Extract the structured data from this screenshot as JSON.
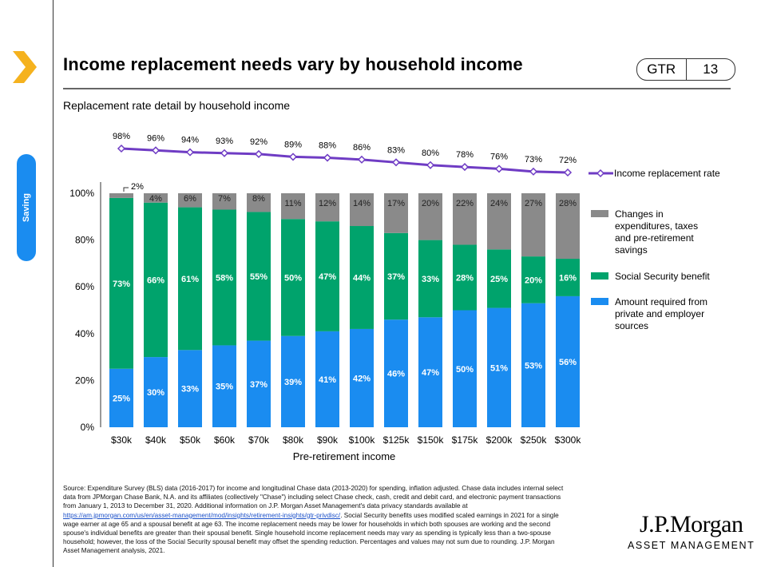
{
  "header": {
    "title": "Income replacement needs vary by household income",
    "badge_left": "GTR",
    "badge_right": "13",
    "side_tab": "Saving"
  },
  "colors": {
    "accent": "#f5b21e",
    "tab": "#1a8cf0",
    "blue": "#1a8cf0",
    "green": "#00a36c",
    "gray": "#8a8a8a",
    "purple": "#6f3cc4"
  },
  "chart_data": {
    "type": "bar",
    "title": "Replacement rate detail by household income",
    "xlabel": "Pre-retirement income",
    "ylabel": "",
    "ylim": [
      0,
      100
    ],
    "yticks": [
      "0%",
      "20%",
      "40%",
      "60%",
      "80%",
      "100%"
    ],
    "categories": [
      "$30k",
      "$40k",
      "$50k",
      "$60k",
      "$70k",
      "$80k",
      "$90k",
      "$100k",
      "$125k",
      "$150k",
      "$175k",
      "$200k",
      "$250k",
      "$300k"
    ],
    "series": [
      {
        "name": "Amount required from private and employer sources",
        "values": [
          25,
          30,
          33,
          35,
          37,
          39,
          41,
          42,
          46,
          47,
          50,
          51,
          53,
          56
        ]
      },
      {
        "name": "Social Security benefit",
        "values": [
          73,
          66,
          61,
          58,
          55,
          50,
          47,
          44,
          37,
          33,
          28,
          25,
          20,
          16
        ]
      },
      {
        "name": "Changes in expenditures, taxes and pre-retirement savings",
        "values": [
          2,
          4,
          6,
          7,
          8,
          11,
          12,
          14,
          17,
          20,
          22,
          24,
          27,
          28
        ]
      }
    ],
    "line": {
      "name": "Income replacement rate",
      "values": [
        98,
        96,
        94,
        93,
        92,
        89,
        88,
        86,
        83,
        80,
        78,
        76,
        73,
        72
      ]
    },
    "legend_position": "right"
  },
  "footnote": {
    "pre": "Source: Expenditure Survey (BLS) data (2016-2017) for income and longitudinal Chase data (2013-2020) for spending, inflation adjusted. Chase data includes internal select data from JPMorgan Chase Bank, N.A. and its affiliates (collectively \"Chase\") including select Chase check, cash, credit and debit card, and electronic payment transactions from January 1, 2013 to December 31, 2020. Additional information on J.P. Morgan Asset Management's data privacy standards available at ",
    "link": "https://am.jpmorgan.com/us/en/asset-management/mod/insights/retirement-insights/gtr-privdisc/",
    "post": ". Social Security benefits uses modified scaled earnings in 2021 for a single wage earner at age 65 and a spousal benefit at age 63. The income replacement needs may be lower for households in which both spouses are working and the second spouse's individual benefits are greater than their spousal benefit. Single household income replacement needs may vary as spending is typically less than a two-spouse household; however, the loss of the Social Security spousal benefit may offset the spending reduction. Percentages and values may not sum due to rounding. J.P. Morgan Asset Management analysis, 2021."
  },
  "logo": {
    "name": "J.P.Morgan",
    "sub": "ASSET MANAGEMENT"
  }
}
